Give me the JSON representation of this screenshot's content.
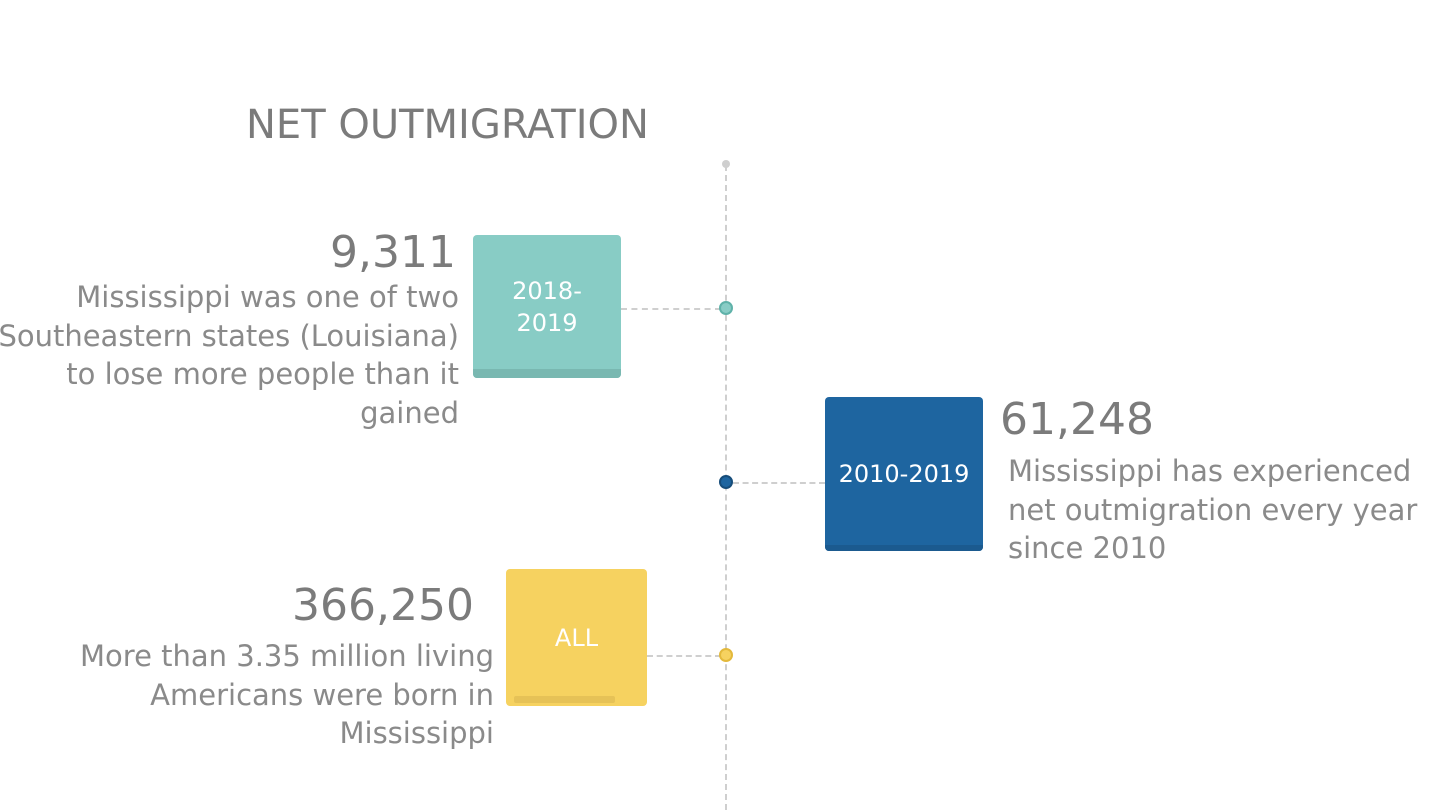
{
  "title": "NET OUTMIGRATION",
  "items": [
    {
      "period": "2018-\n2019",
      "value": "9,311",
      "description": "Mississippi was one of two Southeastern states (Louisiana) to lose more people than it gained",
      "color": "#88ccc5"
    },
    {
      "period": "2010-2019",
      "value": "61,248",
      "description": "Mississippi has experienced net outmigration every year since 2010",
      "color": "#1e65a0"
    },
    {
      "period": "ALL",
      "value": "366,250",
      "description": "More than 3.35 million living Americans were born in Mississippi",
      "color": "#f6d260"
    }
  ],
  "colors": {
    "text_dark": "#7b7b7b",
    "text_light": "#8a8a8a",
    "axis": "#cfcfcf"
  }
}
